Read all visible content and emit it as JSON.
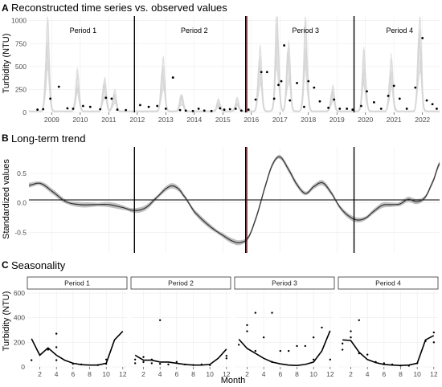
{
  "figure": {
    "panels": [
      {
        "letter": "A",
        "title": "Reconstructed time series vs. observed values"
      },
      {
        "letter": "B",
        "title": "Long-term trend"
      },
      {
        "letter": "C",
        "title": "Seasonality"
      }
    ],
    "colors": {
      "ink": "#000000",
      "band": "#d6d6d6",
      "grid": "#ececec",
      "breakLine": "#8b1a1a",
      "strip": "#ffffff"
    }
  },
  "chart_data": [
    {
      "type": "line",
      "title": "Reconstructed time series vs. observed values",
      "xlabel": "",
      "ylabel": "Turbidity (NTU)",
      "xlim": [
        2008.2,
        2022.6
      ],
      "ylim": [
        0,
        1050
      ],
      "xticks": [
        2009,
        2010,
        2011,
        2012,
        2013,
        2014,
        2015,
        2016,
        2017,
        2018,
        2019,
        2020,
        2021,
        2022
      ],
      "yticks": [
        0,
        250,
        500,
        750,
        1000
      ],
      "grid": true,
      "period_labels": [
        {
          "label": "Period 1",
          "x": 2010.1
        },
        {
          "label": "Period 2",
          "x": 2014.0
        },
        {
          "label": "Period 3",
          "x": 2017.9
        },
        {
          "label": "Period 4",
          "x": 2021.2
        }
      ],
      "breakpoints": [
        2011.9,
        2015.8,
        2019.6
      ],
      "highlight_break": 2015.8,
      "reconstruction_peaks": [
        [
          2008.85,
          900
        ],
        [
          2009.9,
          380
        ],
        [
          2010.85,
          330
        ],
        [
          2011.2,
          200
        ],
        [
          2012.9,
          520
        ],
        [
          2013.55,
          170
        ],
        [
          2014.85,
          110
        ],
        [
          2015.5,
          120
        ],
        [
          2016.3,
          620
        ],
        [
          2016.9,
          990
        ],
        [
          2017.3,
          700
        ],
        [
          2017.9,
          880
        ],
        [
          2018.85,
          240
        ],
        [
          2019.95,
          580
        ],
        [
          2020.9,
          520
        ],
        [
          2021.9,
          950
        ]
      ],
      "observed": [
        [
          2008.5,
          30
        ],
        [
          2008.7,
          35
        ],
        [
          2008.95,
          150
        ],
        [
          2009.25,
          280
        ],
        [
          2009.55,
          45
        ],
        [
          2009.75,
          40
        ],
        [
          2010.1,
          70
        ],
        [
          2010.35,
          60
        ],
        [
          2010.7,
          35
        ],
        [
          2010.9,
          160
        ],
        [
          2011.1,
          150
        ],
        [
          2011.3,
          30
        ],
        [
          2011.6,
          25
        ],
        [
          2012.1,
          80
        ],
        [
          2012.4,
          60
        ],
        [
          2012.7,
          70
        ],
        [
          2013.0,
          40
        ],
        [
          2013.25,
          380
        ],
        [
          2013.5,
          25
        ],
        [
          2013.7,
          20
        ],
        [
          2013.95,
          15
        ],
        [
          2014.15,
          40
        ],
        [
          2014.35,
          20
        ],
        [
          2014.6,
          15
        ],
        [
          2014.9,
          45
        ],
        [
          2015.05,
          30
        ],
        [
          2015.25,
          35
        ],
        [
          2015.45,
          40
        ],
        [
          2015.65,
          20
        ],
        [
          2015.9,
          30
        ],
        [
          2016.15,
          140
        ],
        [
          2016.35,
          440
        ],
        [
          2016.55,
          440
        ],
        [
          2016.8,
          150
        ],
        [
          2016.95,
          300
        ],
        [
          2017.05,
          340
        ],
        [
          2017.15,
          730
        ],
        [
          2017.35,
          130
        ],
        [
          2017.6,
          320
        ],
        [
          2017.85,
          60
        ],
        [
          2018.0,
          340
        ],
        [
          2018.2,
          270
        ],
        [
          2018.4,
          120
        ],
        [
          2018.7,
          50
        ],
        [
          2018.9,
          140
        ],
        [
          2019.1,
          40
        ],
        [
          2019.35,
          40
        ],
        [
          2019.55,
          30
        ],
        [
          2019.85,
          70
        ],
        [
          2020.05,
          230
        ],
        [
          2020.3,
          110
        ],
        [
          2020.55,
          40
        ],
        [
          2020.8,
          180
        ],
        [
          2021.0,
          290
        ],
        [
          2021.2,
          150
        ],
        [
          2021.45,
          40
        ],
        [
          2021.75,
          270
        ],
        [
          2022.0,
          810
        ],
        [
          2022.15,
          130
        ],
        [
          2022.35,
          90
        ],
        [
          2022.5,
          40
        ]
      ]
    },
    {
      "type": "line",
      "title": "Long-term trend",
      "xlabel": "",
      "ylabel": "Standardized values",
      "xlim": [
        2008.2,
        2022.6
      ],
      "ylim": [
        -0.85,
        0.95
      ],
      "yticks": [
        -0.5,
        0.0,
        0.5
      ],
      "ytick_labels": [
        "-0.5",
        "0.0",
        "0.5"
      ],
      "reference_line": 0.05,
      "grid": true,
      "breakpoints": [
        2011.9,
        2015.8,
        2019.6
      ],
      "highlight_break": 2015.8,
      "x": [
        2008.2,
        2008.6,
        2009.0,
        2009.5,
        2010.0,
        2010.5,
        2011.0,
        2011.5,
        2011.9,
        2012.3,
        2012.7,
        2013.1,
        2013.35,
        2013.6,
        2014.0,
        2014.5,
        2015.0,
        2015.4,
        2015.65,
        2015.9,
        2016.2,
        2016.5,
        2016.75,
        2017.0,
        2017.3,
        2017.6,
        2017.9,
        2018.2,
        2018.5,
        2018.8,
        2019.1,
        2019.4,
        2019.7,
        2020.0,
        2020.3,
        2020.6,
        2020.9,
        2021.2,
        2021.5,
        2021.8,
        2022.1,
        2022.4,
        2022.6
      ],
      "y": [
        0.3,
        0.33,
        0.2,
        0.02,
        -0.03,
        -0.03,
        -0.03,
        -0.08,
        -0.13,
        -0.08,
        0.1,
        0.27,
        0.27,
        0.14,
        -0.15,
        -0.38,
        -0.55,
        -0.66,
        -0.67,
        -0.58,
        -0.2,
        0.3,
        0.66,
        0.78,
        0.57,
        0.31,
        0.16,
        0.28,
        0.34,
        0.17,
        -0.07,
        -0.22,
        -0.29,
        -0.26,
        -0.14,
        -0.04,
        -0.03,
        -0.02,
        0.06,
        0.02,
        0.1,
        0.4,
        0.67
      ],
      "band_halfwidth": 0.03
    },
    {
      "type": "line",
      "title": "Seasonality",
      "xlabel": "Month",
      "ylabel": "Turbidity (NTU)",
      "xlim": [
        0.5,
        12.5
      ],
      "ylim": [
        0,
        620
      ],
      "xticks": [
        2,
        4,
        6,
        8,
        10,
        12
      ],
      "yticks": [
        0,
        200,
        400,
        600
      ],
      "grid": true,
      "facets": [
        {
          "label": "Period 1",
          "line": [
            [
              1,
              230
            ],
            [
              2,
              95
            ],
            [
              3,
              155
            ],
            [
              4,
              95
            ],
            [
              5,
              55
            ],
            [
              6,
              30
            ],
            [
              7,
              18
            ],
            [
              8,
              15
            ],
            [
              9,
              15
            ],
            [
              10,
              30
            ],
            [
              11,
              220
            ],
            [
              12,
              290
            ]
          ],
          "points": [
            [
              1,
              55
            ],
            [
              3,
              140
            ],
            [
              4,
              270
            ],
            [
              4,
              160
            ],
            [
              4,
              55
            ],
            [
              6,
              25
            ],
            [
              7,
              20
            ],
            [
              9,
              15
            ],
            [
              10,
              60
            ],
            [
              10,
              25
            ]
          ]
        },
        {
          "label": "Period 2",
          "line": [
            [
              1,
              95
            ],
            [
              2,
              55
            ],
            [
              3,
              55
            ],
            [
              4,
              40
            ],
            [
              5,
              40
            ],
            [
              6,
              30
            ],
            [
              7,
              20
            ],
            [
              8,
              15
            ],
            [
              9,
              15
            ],
            [
              10,
              20
            ],
            [
              11,
              70
            ],
            [
              12,
              145
            ]
          ],
          "points": [
            [
              1,
              60
            ],
            [
              1,
              30
            ],
            [
              2,
              80
            ],
            [
              2,
              40
            ],
            [
              3,
              60
            ],
            [
              3,
              30
            ],
            [
              4,
              380
            ],
            [
              4,
              25
            ],
            [
              5,
              20
            ],
            [
              6,
              40
            ],
            [
              7,
              20
            ],
            [
              8,
              15
            ],
            [
              9,
              20
            ],
            [
              10,
              15
            ],
            [
              12,
              90
            ],
            [
              12,
              70
            ]
          ]
        },
        {
          "label": "Period 3",
          "line": [
            [
              1,
              225
            ],
            [
              2,
              150
            ],
            [
              3,
              110
            ],
            [
              4,
              70
            ],
            [
              5,
              40
            ],
            [
              6,
              25
            ],
            [
              7,
              15
            ],
            [
              8,
              12
            ],
            [
              9,
              20
            ],
            [
              10,
              40
            ],
            [
              11,
              130
            ],
            [
              12,
              295
            ]
          ],
          "points": [
            [
              1,
              180
            ],
            [
              2,
              340
            ],
            [
              2,
              290
            ],
            [
              3,
              440
            ],
            [
              3,
              130
            ],
            [
              4,
              240
            ],
            [
              5,
              440
            ],
            [
              5,
              40
            ],
            [
              6,
              130
            ],
            [
              7,
              130
            ],
            [
              8,
              170
            ],
            [
              9,
              170
            ],
            [
              10,
              240
            ],
            [
              10,
              60
            ],
            [
              11,
              320
            ],
            [
              12,
              60
            ]
          ]
        },
        {
          "label": "Period 4",
          "line": [
            [
              1,
              220
            ],
            [
              2,
              215
            ],
            [
              3,
              120
            ],
            [
              4,
              60
            ],
            [
              5,
              35
            ],
            [
              6,
              20
            ],
            [
              7,
              15
            ],
            [
              8,
              12
            ],
            [
              9,
              15
            ],
            [
              10,
              30
            ],
            [
              11,
              220
            ],
            [
              12,
              255
            ]
          ],
          "points": [
            [
              1,
              190
            ],
            [
              1,
              140
            ],
            [
              2,
              290
            ],
            [
              2,
              240
            ],
            [
              3,
              380
            ],
            [
              3,
              110
            ],
            [
              4,
              100
            ],
            [
              5,
              40
            ],
            [
              6,
              30
            ],
            [
              7,
              20
            ],
            [
              8,
              10
            ],
            [
              9,
              10
            ],
            [
              10,
              30
            ],
            [
              11,
              210
            ],
            [
              12,
              280
            ],
            [
              12,
              200
            ]
          ]
        }
      ]
    }
  ]
}
